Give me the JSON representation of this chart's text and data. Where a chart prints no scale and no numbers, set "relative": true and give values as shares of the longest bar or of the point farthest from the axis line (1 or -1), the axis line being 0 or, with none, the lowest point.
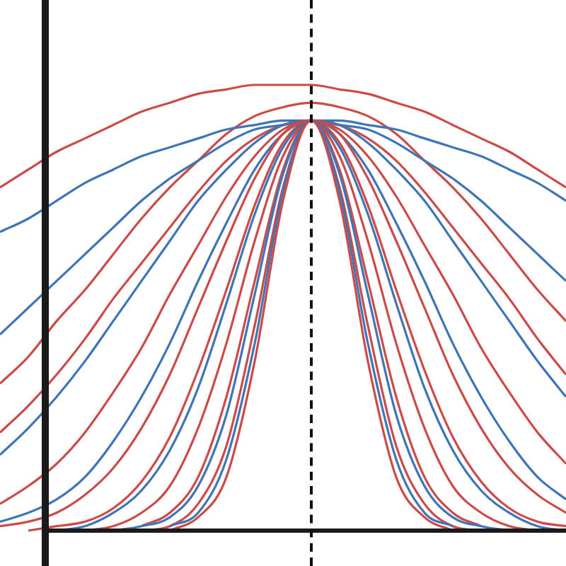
{
  "chart_data": {
    "type": "line",
    "relative": true,
    "marker": "none",
    "line_style": "solid",
    "legend": false,
    "categories": [
      null,
      null,
      null,
      null,
      null,
      null,
      null,
      null,
      null,
      null,
      null,
      null,
      null,
      null,
      null,
      null,
      null,
      null,
      null,
      null,
      null
    ],
    "series": [
      {
        "color": "#cc4a47",
        "values": [
          null,
          null,
          null,
          null,
          null,
          null,
          0,
          0.03,
          0.12,
          0.38,
          0.74,
          0.92,
          0.74,
          0.38,
          0.12,
          0.03,
          0,
          null,
          null,
          null,
          null
        ]
      },
      {
        "color": "#3d75b8",
        "values": [
          null,
          null,
          null,
          null,
          null,
          null,
          0.01,
          0.04,
          0.16,
          0.42,
          0.76,
          0.92,
          0.76,
          0.42,
          0.16,
          0.04,
          0.01,
          null,
          null,
          null,
          null
        ]
      },
      {
        "color": "#cc4a47",
        "values": [
          null,
          null,
          null,
          null,
          null,
          0,
          0.01,
          0.06,
          0.19,
          0.46,
          0.77,
          0.92,
          0.77,
          0.46,
          0.19,
          0.06,
          0.01,
          0,
          null,
          null,
          null
        ]
      },
      {
        "color": "#3d75b8",
        "values": [
          null,
          null,
          null,
          null,
          0,
          0.01,
          0.03,
          0.1,
          0.26,
          0.53,
          0.8,
          0.92,
          0.8,
          0.53,
          0.26,
          0.1,
          0.03,
          0.01,
          0,
          null,
          null
        ]
      },
      {
        "color": "#cc4a47",
        "values": [
          null,
          null,
          null,
          null,
          null,
          0.01,
          0.04,
          0.12,
          0.3,
          0.56,
          0.81,
          0.92,
          0.81,
          0.56,
          0.3,
          0.12,
          0.04,
          0.01,
          null,
          null,
          null
        ]
      },
      {
        "color": "#cc4a47",
        "values": [
          null,
          null,
          null,
          0,
          0.01,
          0.04,
          0.1,
          0.23,
          0.42,
          0.65,
          0.84,
          0.92,
          0.84,
          0.65,
          0.42,
          0.23,
          0.1,
          0.04,
          0.01,
          0,
          null
        ]
      },
      {
        "color": "#3d75b8",
        "values": [
          null,
          null,
          0,
          0.01,
          0.04,
          0.09,
          0.18,
          0.32,
          0.51,
          0.71,
          0.86,
          0.92,
          0.86,
          0.71,
          0.51,
          0.32,
          0.18,
          0.09,
          0.04,
          0.01,
          0
        ]
      },
      {
        "color": "#cc4a47",
        "values": [
          null,
          0,
          0.01,
          0.02,
          0.05,
          0.11,
          0.21,
          0.36,
          0.54,
          0.73,
          0.87,
          0.92,
          0.87,
          0.73,
          0.54,
          0.36,
          0.21,
          0.11,
          0.05,
          0.02,
          0.01
        ]
      },
      {
        "color": "#cc4a47",
        "values": [
          0.01,
          0.02,
          0.04,
          0.08,
          0.14,
          0.23,
          0.35,
          0.5,
          0.65,
          0.79,
          0.89,
          0.92,
          0.89,
          0.79,
          0.65,
          0.5,
          0.35,
          0.23,
          0.14,
          0.08,
          0.04
        ]
      },
      {
        "color": "#3d75b8",
        "values": [
          0.02,
          0.04,
          0.07,
          0.12,
          0.2,
          0.3,
          0.42,
          0.56,
          0.69,
          0.81,
          0.89,
          0.92,
          0.89,
          0.81,
          0.69,
          0.56,
          0.42,
          0.3,
          0.2,
          0.12,
          0.07
        ]
      },
      {
        "color": "#cc4a47",
        "values": [
          0.06,
          0.1,
          0.15,
          0.22,
          0.31,
          0.41,
          0.53,
          0.64,
          0.75,
          0.84,
          0.9,
          0.92,
          0.9,
          0.84,
          0.75,
          0.64,
          0.53,
          0.41,
          0.31,
          0.22,
          0.15
        ]
      },
      {
        "color": "#3d75b8",
        "values": [
          0.17,
          0.23,
          0.3,
          0.38,
          0.47,
          0.56,
          0.65,
          0.74,
          0.81,
          0.87,
          0.91,
          0.92,
          0.91,
          0.87,
          0.81,
          0.74,
          0.65,
          0.56,
          0.47,
          0.38,
          0.3
        ]
      },
      {
        "color": "#cc4a47",
        "values": [
          0.22,
          0.28,
          0.35,
          0.43,
          0.52,
          0.6,
          0.68,
          0.76,
          0.83,
          0.88,
          0.91,
          0.92,
          0.91,
          0.88,
          0.83,
          0.76,
          0.68,
          0.6,
          0.52,
          0.43,
          0.35
        ]
      },
      {
        "color": "#3d75b8",
        "values": [
          0.44,
          0.5,
          0.56,
          0.62,
          0.68,
          0.74,
          0.79,
          0.83,
          0.87,
          0.9,
          0.91,
          0.92,
          0.91,
          0.9,
          0.87,
          0.83,
          0.79,
          0.74,
          0.68,
          0.62,
          0.56
        ]
      },
      {
        "color": "#3d75b8",
        "values": [
          0.67,
          0.7,
          0.74,
          0.78,
          0.81,
          0.84,
          0.86,
          0.88,
          0.9,
          0.91,
          0.92,
          0.92,
          0.92,
          0.91,
          0.9,
          0.88,
          0.86,
          0.84,
          0.81,
          0.78,
          0.74
        ]
      },
      {
        "color": "#cc4a47",
        "values": [
          0.33,
          0.39,
          0.47,
          0.54,
          0.62,
          0.7,
          0.77,
          0.83,
          0.89,
          0.93,
          0.95,
          0.96,
          0.95,
          0.93,
          0.89,
          0.83,
          0.77,
          0.7,
          0.62,
          0.54,
          0.47
        ]
      },
      {
        "color": "#cc4a47",
        "values": [
          0.77,
          0.81,
          0.85,
          0.88,
          0.91,
          0.94,
          0.96,
          0.98,
          0.99,
          1.0,
          1.0,
          1.0,
          0.99,
          0.98,
          0.96,
          0.94,
          0.91,
          0.88,
          0.85,
          0.81,
          0.77
        ]
      }
    ]
  }
}
